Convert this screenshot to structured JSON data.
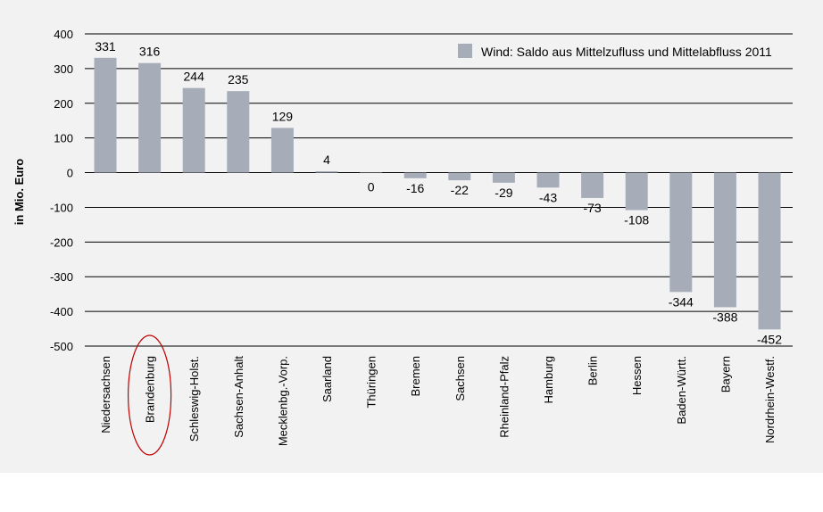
{
  "chart_data": {
    "type": "bar",
    "ylabel": "in Mio. Euro",
    "ylim": [
      -500,
      400
    ],
    "yticks": [
      400,
      300,
      200,
      100,
      0,
      -100,
      -200,
      -300,
      -400,
      -500
    ],
    "grid": true,
    "legend_position": "top-right",
    "series": [
      {
        "name": "Wind: Saldo aus Mittelzufluss und Mittelabfluss 2011",
        "color": "#a6adb9",
        "values": [
          331,
          316,
          244,
          235,
          129,
          4,
          0,
          -16,
          -22,
          -29,
          -43,
          -73,
          -108,
          -344,
          -388,
          -452
        ]
      }
    ],
    "categories": [
      "Niedersachsen",
      "Brandenburg",
      "Schleswig-Holst.",
      "Sachsen-Anhalt",
      "Mecklenbg.-Vorp.",
      "Saarland",
      "Thüringen",
      "Bremen",
      "Sachsen",
      "Rheinland-Pfalz",
      "Hamburg",
      "Berlin",
      "Hessen",
      "Baden-Württ.",
      "Bayern",
      "Nordrhein-Westf."
    ],
    "highlighted_category": "Brandenburg",
    "highlight_color": "#c00000"
  }
}
